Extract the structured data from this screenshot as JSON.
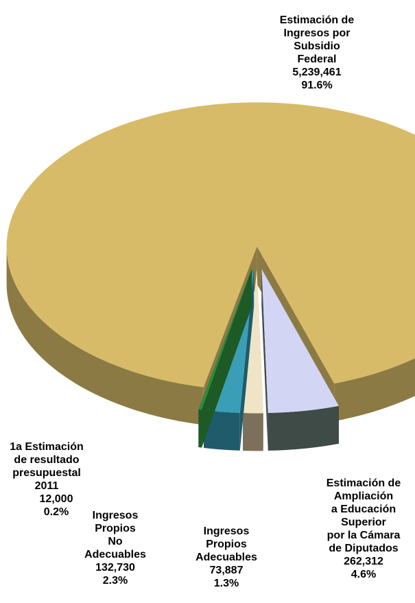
{
  "chart_data": {
    "type": "pie3d",
    "categories": [
      [
        "Estimación de",
        "Ingresos por",
        "Subsidio",
        "Federal"
      ],
      [
        "Estimación de",
        "Ampliación",
        "a Educación",
        "Superior",
        "por la Cámara",
        "de Diputados"
      ],
      [
        "Ingresos",
        "Propios",
        "Adecuables"
      ],
      [
        "Ingresos",
        "Propios",
        "No",
        "Adecuables"
      ],
      [
        "1a Estimación",
        "de resultado",
        "presupuestal",
        "2011"
      ]
    ],
    "values": [
      5239461,
      262312,
      73887,
      132730,
      12000
    ],
    "value_labels": [
      "5,239,461",
      "262,312",
      "73,887",
      "132,730",
      "12,000"
    ],
    "percent_labels": [
      "91.6%",
      "4.6%",
      "1.3%",
      "2.3%",
      "0.2%"
    ],
    "colors": [
      "#d8bb68",
      "#d2d6f4",
      "#efe5c6",
      "#3a9fb6",
      "#2f8a3c"
    ],
    "side_colors": [
      "#8c7a44",
      "#3f4b46",
      "#7d705a",
      "#1f5b6b",
      "#1d5a26"
    ]
  }
}
